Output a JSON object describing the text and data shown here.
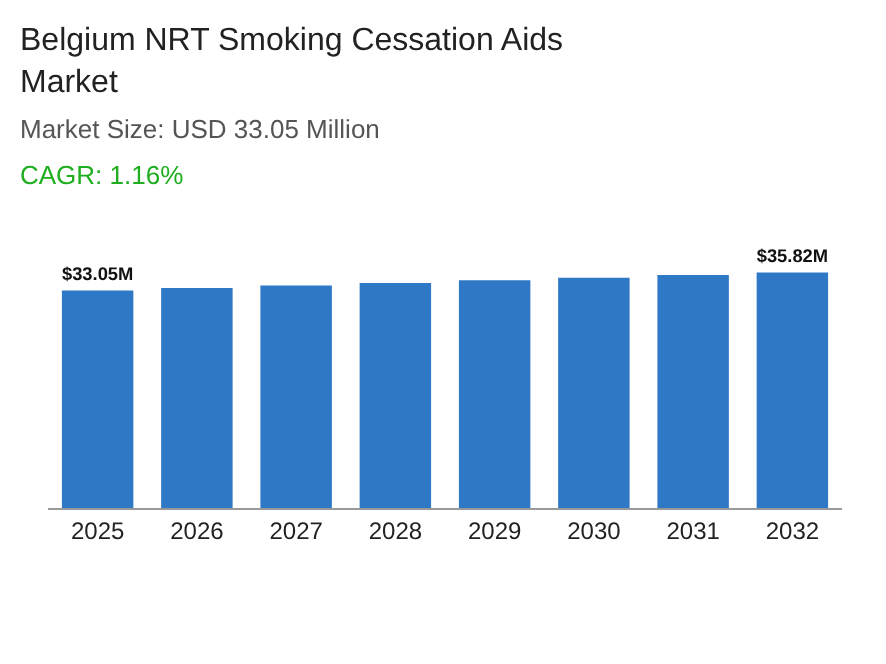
{
  "chart_data": {
    "type": "bar",
    "title": "Belgium NRT Smoking Cessation Aids Market",
    "subtitle": "Market Size: USD 33.05 Million",
    "annotations": [
      "CAGR: 1.16%"
    ],
    "categories": [
      "2025",
      "2026",
      "2027",
      "2028",
      "2029",
      "2030",
      "2031",
      "2032"
    ],
    "values": [
      33.05,
      33.43,
      33.82,
      34.21,
      34.61,
      35.01,
      35.42,
      35.82
    ],
    "value_labels": [
      "$33.05M",
      null,
      null,
      null,
      null,
      null,
      null,
      "$35.82M"
    ],
    "color": "#2e78c6"
  }
}
